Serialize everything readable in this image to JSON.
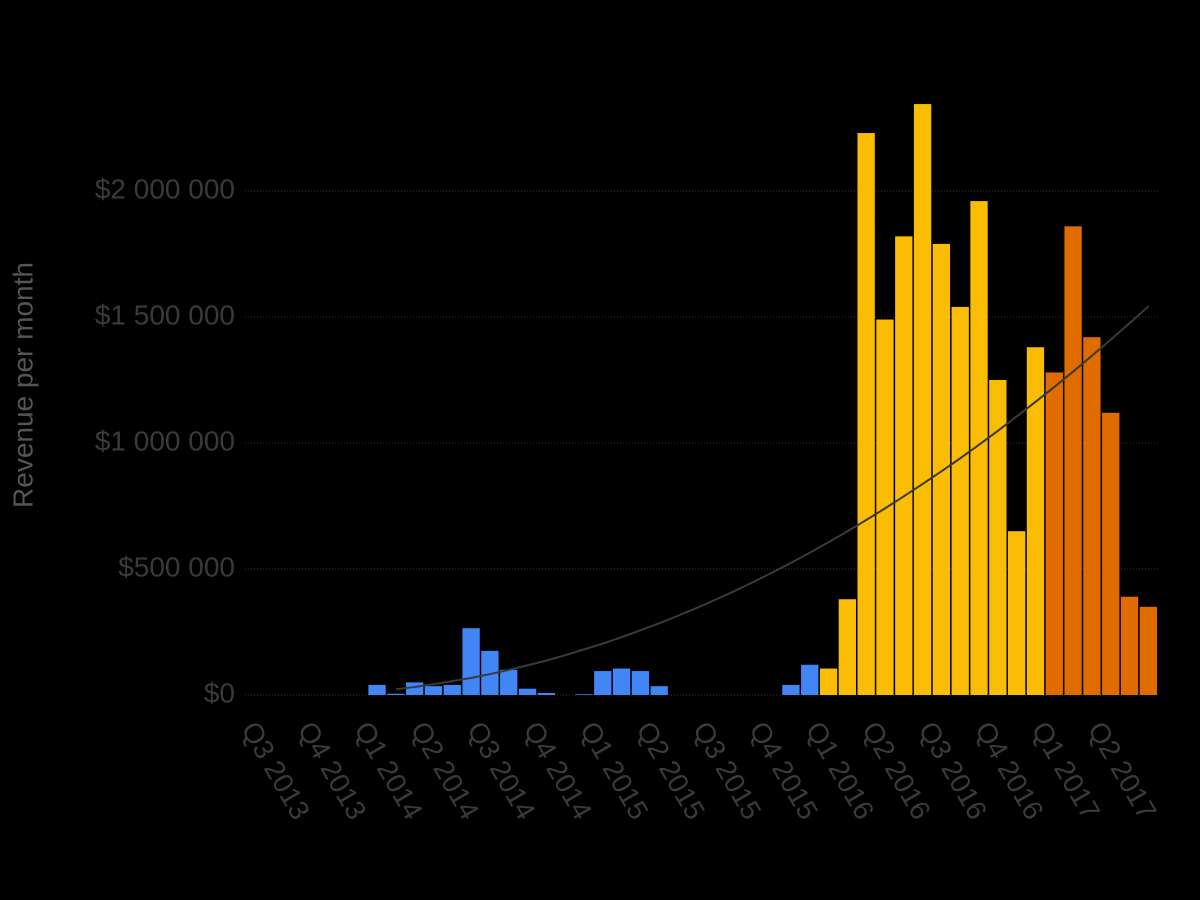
{
  "chart_data": {
    "type": "bar",
    "y_label": "Revenue per month",
    "categories": [
      "Q3 2013",
      null,
      null,
      "Q4 2013",
      null,
      null,
      "Q1 2014",
      null,
      null,
      "Q2 2014",
      null,
      null,
      "Q3 2014",
      null,
      null,
      "Q4 2014",
      null,
      null,
      "Q1 2015",
      null,
      null,
      "Q2 2015",
      null,
      null,
      "Q3 2015",
      null,
      null,
      "Q4 2015",
      null,
      null,
      "Q1 2016",
      null,
      null,
      "Q2 2016",
      null,
      null,
      "Q3 2016",
      null,
      null,
      "Q4 2016",
      null,
      null,
      "Q1 2017",
      null,
      null,
      "Q2 2017",
      null,
      null
    ],
    "series": [
      {
        "color": "#4285f4",
        "values": [
          null,
          null,
          null,
          null,
          null,
          null,
          40000,
          5000,
          50000,
          35000,
          40000,
          265000,
          175000,
          100000,
          25000,
          8000,
          null,
          3000,
          95000,
          105000,
          95000,
          35000,
          null,
          null,
          null,
          null,
          null,
          null,
          40000,
          120000,
          null,
          null,
          null,
          null,
          null,
          null,
          null,
          null,
          null,
          null,
          null,
          null,
          null,
          null,
          null,
          null,
          null,
          null
        ]
      },
      {
        "color": "#fbbc04",
        "values": [
          null,
          null,
          null,
          null,
          null,
          null,
          null,
          null,
          null,
          null,
          null,
          null,
          null,
          null,
          null,
          null,
          null,
          null,
          null,
          null,
          null,
          null,
          null,
          null,
          null,
          null,
          null,
          null,
          null,
          null,
          105000,
          380000,
          2230000,
          1490000,
          1820000,
          2345000,
          1790000,
          1540000,
          1960000,
          1250000,
          650000,
          1380000,
          null,
          null,
          null,
          null,
          null,
          null
        ]
      },
      {
        "color": "#e06c00",
        "values": [
          null,
          null,
          null,
          null,
          null,
          null,
          null,
          null,
          null,
          null,
          null,
          null,
          null,
          null,
          null,
          null,
          null,
          null,
          null,
          null,
          null,
          null,
          null,
          null,
          null,
          null,
          null,
          null,
          null,
          null,
          null,
          null,
          null,
          null,
          null,
          null,
          null,
          null,
          null,
          null,
          null,
          null,
          1280000,
          1860000,
          1420000,
          1120000,
          390000,
          350000
        ]
      }
    ],
    "trendline": {
      "color": "#3a3a3a",
      "values": [
        null,
        null,
        null,
        null,
        null,
        null,
        null,
        23000,
        32000,
        43000,
        55000,
        68000,
        83000,
        100000,
        118000,
        137000,
        158000,
        181000,
        204000,
        230000,
        257000,
        285000,
        315000,
        346000,
        379000,
        413000,
        449000,
        486000,
        525000,
        565000,
        607000,
        650000,
        695000,
        741000,
        789000,
        838000,
        888000,
        940000,
        994000,
        1049000,
        1106000,
        1164000,
        1223000,
        1284000,
        1347000,
        1411000,
        1476000,
        1543000
      ]
    },
    "ylim": [
      0,
      2500000
    ],
    "yticks": [
      {
        "value": 0,
        "label": "$0"
      },
      {
        "value": 500000,
        "label": "$500 000"
      },
      {
        "value": 1000000,
        "label": "$1 000 000"
      },
      {
        "value": 1500000,
        "label": "$1 500 000"
      },
      {
        "value": 2000000,
        "label": "$2 000 000"
      }
    ],
    "grid": true
  }
}
